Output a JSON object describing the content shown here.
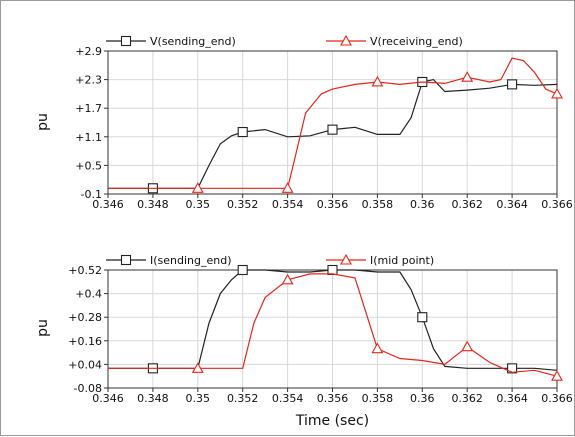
{
  "chart_data": [
    {
      "type": "line",
      "title": "",
      "xlabel": "",
      "ylabel": "pu",
      "xlim": [
        0.346,
        0.366
      ],
      "ylim": [
        -0.1,
        2.9
      ],
      "x_ticks": [
        "0.346",
        "0.348",
        "0.35",
        "0.352",
        "0.354",
        "0.356",
        "0.358",
        "0.36",
        "0.362",
        "0.364",
        "0.366"
      ],
      "y_ticks": [
        "+2.9",
        "+2.3",
        "+1.7",
        "+1.1",
        "+0.5",
        "-0.1"
      ],
      "grid": true,
      "legend_position": "top",
      "series": [
        {
          "name": "V(sending_end)",
          "color": "#222222",
          "marker": "square",
          "points": [
            [
              0.346,
              0.02
            ],
            [
              0.348,
              0.02
            ],
            [
              0.35,
              0.02
            ],
            [
              0.3505,
              0.5
            ],
            [
              0.351,
              0.95
            ],
            [
              0.3515,
              1.12
            ],
            [
              0.352,
              1.2
            ],
            [
              0.353,
              1.25
            ],
            [
              0.354,
              1.1
            ],
            [
              0.355,
              1.12
            ],
            [
              0.356,
              1.25
            ],
            [
              0.357,
              1.3
            ],
            [
              0.358,
              1.15
            ],
            [
              0.359,
              1.15
            ],
            [
              0.3595,
              1.5
            ],
            [
              0.36,
              2.25
            ],
            [
              0.3605,
              2.3
            ],
            [
              0.361,
              2.05
            ],
            [
              0.362,
              2.08
            ],
            [
              0.363,
              2.12
            ],
            [
              0.364,
              2.2
            ],
            [
              0.365,
              2.18
            ],
            [
              0.366,
              2.2
            ]
          ],
          "marker_x": [
            0.348,
            0.352,
            0.356,
            0.36,
            0.364
          ]
        },
        {
          "name": "V(receiving_end)",
          "color": "#e8251b",
          "marker": "triangle",
          "points": [
            [
              0.346,
              0.02
            ],
            [
              0.35,
              0.02
            ],
            [
              0.354,
              0.02
            ],
            [
              0.3543,
              0.6
            ],
            [
              0.3548,
              1.6
            ],
            [
              0.3555,
              2.0
            ],
            [
              0.356,
              2.1
            ],
            [
              0.357,
              2.2
            ],
            [
              0.358,
              2.25
            ],
            [
              0.359,
              2.2
            ],
            [
              0.36,
              2.25
            ],
            [
              0.361,
              2.22
            ],
            [
              0.362,
              2.35
            ],
            [
              0.363,
              2.25
            ],
            [
              0.3635,
              2.3
            ],
            [
              0.364,
              2.75
            ],
            [
              0.3645,
              2.7
            ],
            [
              0.365,
              2.45
            ],
            [
              0.3655,
              2.1
            ],
            [
              0.366,
              2.0
            ]
          ],
          "marker_x": [
            0.35,
            0.354,
            0.358,
            0.362,
            0.366
          ]
        }
      ]
    },
    {
      "type": "line",
      "title": "",
      "xlabel": "Time (sec)",
      "ylabel": "pu",
      "xlim": [
        0.346,
        0.366
      ],
      "ylim": [
        -0.08,
        0.52
      ],
      "x_ticks": [
        "0.346",
        "0.348",
        "0.35",
        "0.352",
        "0.354",
        "0.356",
        "0.358",
        "0.36",
        "0.362",
        "0.364",
        "0.366"
      ],
      "y_ticks": [
        "+0.52",
        "+0.4",
        "+0.28",
        "+0.16",
        "+0.04",
        "-0.08"
      ],
      "grid": true,
      "legend_position": "top",
      "series": [
        {
          "name": "I(sending_end)",
          "color": "#222222",
          "marker": "square",
          "points": [
            [
              0.346,
              0.02
            ],
            [
              0.348,
              0.02
            ],
            [
              0.35,
              0.02
            ],
            [
              0.3505,
              0.25
            ],
            [
              0.351,
              0.4
            ],
            [
              0.3515,
              0.47
            ],
            [
              0.352,
              0.52
            ],
            [
              0.353,
              0.52
            ],
            [
              0.354,
              0.51
            ],
            [
              0.355,
              0.51
            ],
            [
              0.356,
              0.52
            ],
            [
              0.357,
              0.52
            ],
            [
              0.358,
              0.51
            ],
            [
              0.359,
              0.51
            ],
            [
              0.3595,
              0.42
            ],
            [
              0.36,
              0.28
            ],
            [
              0.3605,
              0.12
            ],
            [
              0.361,
              0.03
            ],
            [
              0.362,
              0.02
            ],
            [
              0.363,
              0.02
            ],
            [
              0.364,
              0.02
            ],
            [
              0.365,
              0.02
            ],
            [
              0.366,
              0.01
            ]
          ],
          "marker_x": [
            0.348,
            0.352,
            0.356,
            0.36,
            0.364
          ]
        },
        {
          "name": "I(mid point)",
          "color": "#e8251b",
          "marker": "triangle",
          "points": [
            [
              0.346,
              0.02
            ],
            [
              0.35,
              0.02
            ],
            [
              0.352,
              0.02
            ],
            [
              0.3525,
              0.25
            ],
            [
              0.353,
              0.38
            ],
            [
              0.354,
              0.47
            ],
            [
              0.355,
              0.5
            ],
            [
              0.356,
              0.5
            ],
            [
              0.357,
              0.48
            ],
            [
              0.3575,
              0.3
            ],
            [
              0.358,
              0.12
            ],
            [
              0.359,
              0.07
            ],
            [
              0.36,
              0.06
            ],
            [
              0.361,
              0.04
            ],
            [
              0.362,
              0.13
            ],
            [
              0.363,
              0.05
            ],
            [
              0.364,
              0.0
            ],
            [
              0.365,
              0.01
            ],
            [
              0.366,
              -0.02
            ]
          ],
          "marker_x": [
            0.35,
            0.354,
            0.358,
            0.362,
            0.366
          ]
        }
      ]
    }
  ]
}
